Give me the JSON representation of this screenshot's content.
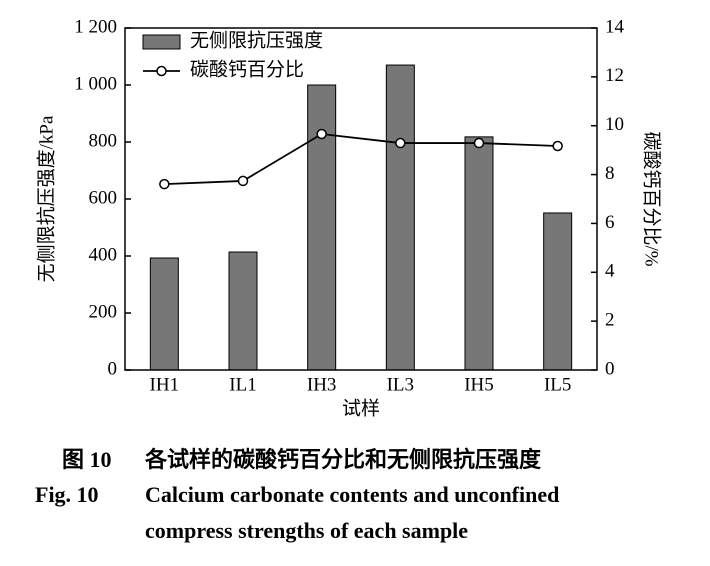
{
  "chart_data": {
    "type": "bar",
    "categories": [
      "IH1",
      "IL1",
      "IH3",
      "IL3",
      "IH5",
      "IL5"
    ],
    "x_label": "试样",
    "y_label": "无侧限抗压强度/kPa",
    "y2_label": "碳酸钙百分比/%",
    "ylim": [
      0,
      1200
    ],
    "yticks": [
      0,
      200,
      400,
      600,
      800,
      {
        "value": 1000,
        "label": "1 000"
      },
      {
        "value": 1200,
        "label": "1 200"
      }
    ],
    "y2lim": [
      0,
      14
    ],
    "y2ticks": [
      0,
      2,
      4,
      6,
      8,
      10,
      12,
      14
    ],
    "series": [
      {
        "name": "无侧限抗压强度",
        "type": "bar",
        "color": "#777777",
        "values": [
          393,
          414,
          1000,
          1070,
          818,
          551
        ]
      },
      {
        "name": "碳酸钙百分比",
        "type": "line",
        "axis": "y2",
        "color": "#000000",
        "values": [
          7.61,
          7.74,
          9.66,
          9.29,
          9.29,
          9.17
        ]
      }
    ]
  },
  "caption": {
    "zh_label": "图 10",
    "zh_text": "各试样的碳酸钙百分比和无侧限抗压强度",
    "en_label": "Fig. 10",
    "en_line1": "Calcium carbonate contents and unconfined",
    "en_line2": "compress strengths of each sample"
  }
}
